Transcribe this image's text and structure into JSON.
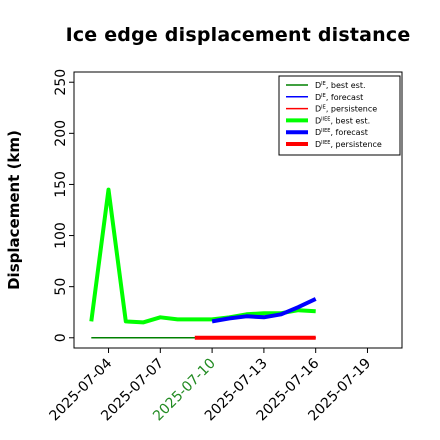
{
  "chart_data": {
    "type": "line",
    "title": "Ice edge displacement distance",
    "xlabel": "",
    "ylabel": "Displacement (km)",
    "ylim": [
      -10,
      260
    ],
    "xlim": [
      "2025-07-02",
      "2025-07-21"
    ],
    "grid": false,
    "legend_position": "top-right",
    "x_ticks": [
      "2025-07-04",
      "2025-07-07",
      "2025-07-10",
      "2025-07-13",
      "2025-07-16",
      "2025-07-19"
    ],
    "highlighted_tick": "2025-07-10",
    "highlight_color": "#228b22",
    "y_ticks": [
      0,
      50,
      100,
      150,
      200,
      250
    ],
    "series": [
      {
        "name": "D^IE best est.",
        "legend_base": "D",
        "legend_sup": "IE",
        "legend_rest": ", best est.",
        "color": "#008000",
        "width": "thin",
        "x": [
          "2025-07-03",
          "2025-07-10"
        ],
        "y": [
          0,
          0
        ]
      },
      {
        "name": "D^IE forecast",
        "legend_base": "D",
        "legend_sup": "IE",
        "legend_rest": ", forecast",
        "color": "#0000ff",
        "width": "thin",
        "x": [
          "2025-07-10",
          "2025-07-16"
        ],
        "y": [
          0,
          0
        ]
      },
      {
        "name": "D^IE persistence",
        "legend_base": "D",
        "legend_sup": "IE",
        "legend_rest": ", persistence",
        "color": "#ff0000",
        "width": "thin",
        "x": [
          "2025-07-10",
          "2025-07-16"
        ],
        "y": [
          0,
          0
        ]
      },
      {
        "name": "D^IIEE best est.",
        "legend_base": "D",
        "legend_sup": "IIEE",
        "legend_rest": ", best est.",
        "color": "#00ff00",
        "width": "thick",
        "x": [
          "2025-07-03",
          "2025-07-04",
          "2025-07-05",
          "2025-07-06",
          "2025-07-07",
          "2025-07-08",
          "2025-07-09",
          "2025-07-10",
          "2025-07-11",
          "2025-07-12",
          "2025-07-13",
          "2025-07-14",
          "2025-07-15",
          "2025-07-16"
        ],
        "y": [
          16,
          145,
          16,
          15,
          20,
          18,
          18,
          18,
          20,
          23,
          24,
          24,
          27,
          26
        ]
      },
      {
        "name": "D^IIEE forecast",
        "legend_base": "D",
        "legend_sup": "IIEE",
        "legend_rest": ", forecast",
        "color": "#0000ff",
        "width": "thick",
        "x": [
          "2025-07-10",
          "2025-07-11",
          "2025-07-12",
          "2025-07-13",
          "2025-07-14",
          "2025-07-15",
          "2025-07-16"
        ],
        "y": [
          16,
          19,
          21,
          20,
          23,
          30,
          38
        ]
      },
      {
        "name": "D^IIEE persistence",
        "legend_base": "D",
        "legend_sup": "IIEE",
        "legend_rest": ", persistence",
        "color": "#ff0000",
        "width": "thick",
        "x": [
          "2025-07-09",
          "2025-07-10",
          "2025-07-11",
          "2025-07-12",
          "2025-07-13",
          "2025-07-14",
          "2025-07-15",
          "2025-07-16"
        ],
        "y": [
          0,
          0,
          0,
          0,
          0,
          0,
          0,
          0
        ]
      }
    ]
  }
}
